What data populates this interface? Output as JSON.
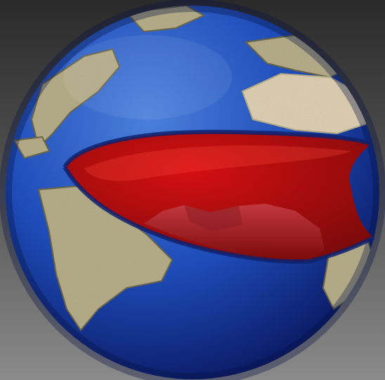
{
  "scene": {
    "subject": "globe-mouth-illustration",
    "colors": {
      "background_top": "#2a2a2a",
      "background_bottom": "#8a8a8a",
      "ocean_light": "#4f86e6",
      "ocean_mid": "#1f4fc0",
      "ocean_dark": "#0b1a66",
      "land": "#b9b08c",
      "land_dark": "#6f6a4a",
      "desert": "#e1d3b6",
      "mouth_inner": "#d50f12",
      "mouth_deep": "#7a0a0a",
      "tongue": "#c2383f"
    }
  }
}
